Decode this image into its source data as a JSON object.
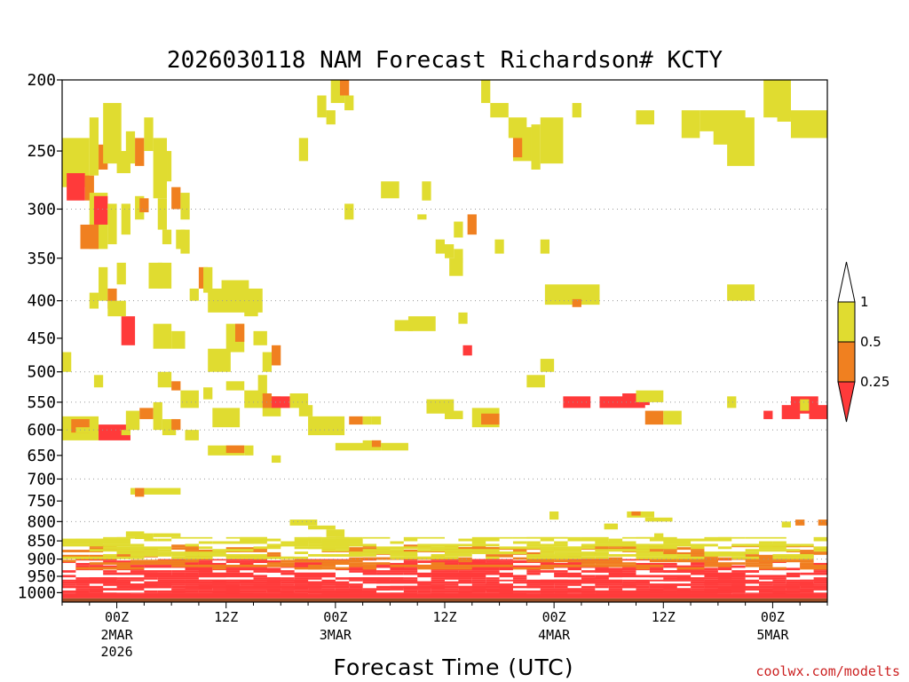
{
  "chart_data": {
    "type": "heatmap",
    "title": "2026030118 NAM Forecast Richardson# KCTY",
    "xlabel": "Forecast Time (UTC)",
    "ylabel": "",
    "credit": "coolwx.com/modelts",
    "x_ticks": [
      {
        "hour": 6,
        "label": "00Z",
        "date": "2MAR",
        "year": "2026"
      },
      {
        "hour": 18,
        "label": "12Z",
        "date": "",
        "year": ""
      },
      {
        "hour": 30,
        "label": "00Z",
        "date": "3MAR",
        "year": ""
      },
      {
        "hour": 42,
        "label": "12Z",
        "date": "",
        "year": ""
      },
      {
        "hour": 54,
        "label": "00Z",
        "date": "4MAR",
        "year": ""
      },
      {
        "hour": 66,
        "label": "12Z",
        "date": "",
        "year": ""
      },
      {
        "hour": 78,
        "label": "00Z",
        "date": "5MAR",
        "year": ""
      }
    ],
    "xlim_hours": [
      0,
      84
    ],
    "y_ticks": [
      "200",
      "250",
      "300",
      "350",
      "400",
      "450",
      "500",
      "550",
      "600",
      "650",
      "700",
      "750",
      "800",
      "850",
      "900",
      "950",
      "1000"
    ],
    "y_dotted_levels": [
      300,
      400,
      500,
      550,
      600,
      700,
      800,
      900
    ],
    "ylim_hpa": [
      1030,
      200
    ],
    "y_scale": "log-pressure",
    "colorbar": {
      "labels": [
        "1",
        "0.5",
        "0.25"
      ],
      "bands": [
        {
          "range": "0.5-1",
          "color": "#e0dc30"
        },
        {
          "range": "0.25-0.5",
          "color": "#f08020"
        },
        {
          "range": "<0.25",
          "color": "#ff3a3a"
        }
      ]
    },
    "surface_color": "#9a4e26",
    "note": "Cell ranges approximated from image: [startHour, endHour, bottomPressure, topPressure, category]. Category 0 = 0.5-1 (yellow), 1 = 0.25-0.5 (orange), 2 = <0.25 (red).",
    "cells": [
      [
        0,
        3,
        280,
        240,
        0
      ],
      [
        0.5,
        2.5,
        292,
        268,
        2
      ],
      [
        2.5,
        3.5,
        292,
        270,
        1
      ],
      [
        3,
        5,
        340,
        285,
        0
      ],
      [
        2,
        4,
        340,
        315,
        1
      ],
      [
        3.5,
        5,
        315,
        288,
        2
      ],
      [
        5,
        6,
        335,
        295,
        0
      ],
      [
        3,
        4,
        270,
        225,
        0
      ],
      [
        4,
        5,
        265,
        245,
        1
      ],
      [
        4.5,
        6.5,
        260,
        215,
        0
      ],
      [
        6,
        7.5,
        268,
        250,
        0
      ],
      [
        7,
        8,
        260,
        235,
        0
      ],
      [
        8,
        9,
        262,
        240,
        1
      ],
      [
        9,
        10,
        250,
        225,
        0
      ],
      [
        10,
        11.5,
        290,
        240,
        0
      ],
      [
        11.5,
        12,
        275,
        250,
        0
      ],
      [
        6.5,
        7.5,
        325,
        295,
        0
      ],
      [
        8,
        9,
        310,
        288,
        0
      ],
      [
        8.5,
        9.5,
        303,
        290,
        1
      ],
      [
        10.5,
        11.5,
        320,
        290,
        0
      ],
      [
        12,
        13,
        300,
        280,
        1
      ],
      [
        13,
        14,
        310,
        285,
        0
      ],
      [
        13,
        14,
        345,
        320,
        0
      ],
      [
        11,
        12,
        335,
        320,
        0
      ],
      [
        3,
        4,
        410,
        390,
        0
      ],
      [
        4,
        5,
        400,
        360,
        0
      ],
      [
        5,
        6,
        410,
        385,
        1
      ],
      [
        6,
        7,
        380,
        355,
        0
      ],
      [
        6.5,
        8,
        460,
        420,
        2
      ],
      [
        5,
        7,
        420,
        400,
        0
      ],
      [
        9.5,
        11,
        385,
        355,
        0
      ],
      [
        10,
        12,
        465,
        430,
        0
      ],
      [
        12,
        13.5,
        465,
        440,
        0
      ],
      [
        10.5,
        12,
        385,
        355,
        0
      ],
      [
        12.5,
        13.5,
        340,
        320,
        0
      ],
      [
        14,
        15,
        400,
        385,
        0
      ],
      [
        15,
        16,
        385,
        360,
        1
      ],
      [
        15.5,
        16.5,
        390,
        360,
        0
      ],
      [
        16,
        22,
        415,
        385,
        0
      ],
      [
        17.5,
        20.5,
        400,
        375,
        0
      ],
      [
        18,
        20,
        470,
        430,
        0
      ],
      [
        16,
        18.5,
        500,
        465,
        0
      ],
      [
        19,
        20,
        455,
        430,
        1
      ],
      [
        20,
        21.5,
        420,
        390,
        0
      ],
      [
        21,
        22.5,
        460,
        440,
        0
      ],
      [
        22,
        23,
        500,
        470,
        0
      ],
      [
        23,
        24,
        490,
        460,
        1
      ],
      [
        21.5,
        22.5,
        540,
        505,
        0
      ],
      [
        0,
        1,
        500,
        470,
        0
      ],
      [
        3.5,
        4.5,
        525,
        505,
        0
      ],
      [
        10.5,
        12,
        525,
        500,
        0
      ],
      [
        12,
        13,
        530,
        515,
        1
      ],
      [
        13,
        15,
        560,
        530,
        0
      ],
      [
        15.5,
        16.5,
        545,
        525,
        0
      ],
      [
        16.5,
        19.5,
        595,
        560,
        0
      ],
      [
        18,
        20,
        530,
        515,
        0
      ],
      [
        20,
        22,
        560,
        530,
        0
      ],
      [
        22,
        24,
        575,
        540,
        0
      ],
      [
        22,
        23,
        560,
        535,
        1
      ],
      [
        23,
        25,
        560,
        540,
        2
      ],
      [
        25,
        27,
        560,
        535,
        0
      ],
      [
        26,
        27.5,
        575,
        555,
        0
      ],
      [
        27,
        31,
        610,
        575,
        0
      ],
      [
        31.5,
        33,
        590,
        575,
        1
      ],
      [
        33,
        34,
        590,
        575,
        0
      ],
      [
        34,
        35,
        590,
        575,
        0
      ],
      [
        30,
        35,
        640,
        625,
        0
      ],
      [
        33,
        35,
        635,
        620,
        0
      ],
      [
        34,
        35,
        633,
        620,
        1
      ],
      [
        35,
        38,
        640,
        625,
        0
      ],
      [
        0,
        4,
        620,
        575,
        0
      ],
      [
        1,
        3,
        605,
        580,
        1
      ],
      [
        1.5,
        4,
        605,
        595,
        0
      ],
      [
        4,
        7.5,
        620,
        590,
        2
      ],
      [
        6.5,
        7.5,
        610,
        600,
        0
      ],
      [
        7,
        8.5,
        600,
        565,
        0
      ],
      [
        8.5,
        10,
        580,
        560,
        1
      ],
      [
        10,
        11,
        600,
        550,
        0
      ],
      [
        11,
        12.5,
        610,
        580,
        0
      ],
      [
        12,
        13,
        600,
        580,
        1
      ],
      [
        13.5,
        15,
        620,
        600,
        0
      ],
      [
        16,
        20,
        650,
        630,
        0
      ],
      [
        18,
        20,
        645,
        630,
        1
      ],
      [
        20,
        21,
        650,
        630,
        0
      ],
      [
        23,
        24,
        665,
        650,
        0
      ],
      [
        7.5,
        13,
        735,
        720,
        0
      ],
      [
        8,
        9,
        740,
        720,
        1
      ],
      [
        40,
        43,
        570,
        545,
        0
      ],
      [
        42,
        44,
        580,
        565,
        0
      ],
      [
        45,
        48,
        595,
        560,
        0
      ],
      [
        46,
        48,
        590,
        570,
        1
      ],
      [
        51,
        53,
        525,
        505,
        0
      ],
      [
        55,
        58,
        560,
        540,
        2
      ],
      [
        59,
        64,
        560,
        540,
        2
      ],
      [
        61.5,
        64.5,
        555,
        535,
        2
      ],
      [
        63,
        66,
        550,
        530,
        0
      ],
      [
        64,
        66,
        590,
        565,
        1
      ],
      [
        66,
        68,
        590,
        565,
        0
      ],
      [
        73,
        74,
        560,
        540,
        0
      ],
      [
        77,
        78,
        580,
        565,
        2
      ],
      [
        79,
        81,
        580,
        555,
        2
      ],
      [
        80,
        83,
        570,
        540,
        2
      ],
      [
        82,
        84,
        580,
        555,
        2
      ],
      [
        81,
        82,
        565,
        545,
        0
      ],
      [
        29.5,
        31,
        215,
        200,
        0
      ],
      [
        30.5,
        31.5,
        210,
        200,
        1
      ],
      [
        31,
        32,
        220,
        210,
        0
      ],
      [
        28,
        29,
        225,
        210,
        0
      ],
      [
        29,
        30,
        230,
        220,
        0
      ],
      [
        26,
        27,
        258,
        240,
        0
      ],
      [
        35,
        37,
        290,
        275,
        0
      ],
      [
        39.5,
        40.5,
        292,
        275,
        0
      ],
      [
        31,
        32,
        310,
        295,
        0
      ],
      [
        39,
        40,
        310,
        305,
        0
      ],
      [
        43,
        44,
        328,
        312,
        0
      ],
      [
        44.5,
        45.5,
        325,
        305,
        1
      ],
      [
        41,
        42,
        345,
        330,
        0
      ],
      [
        42,
        43,
        350,
        335,
        0
      ],
      [
        43,
        44,
        355,
        340,
        0
      ],
      [
        42.5,
        44,
        370,
        350,
        0
      ],
      [
        47.5,
        48.5,
        345,
        330,
        0
      ],
      [
        52.5,
        53.5,
        345,
        330,
        0
      ],
      [
        46,
        47,
        215,
        200,
        0
      ],
      [
        47,
        49,
        225,
        215,
        0
      ],
      [
        49,
        51,
        240,
        225,
        0
      ],
      [
        49.5,
        51.5,
        258,
        232,
        0
      ],
      [
        49.5,
        50.5,
        255,
        240,
        1
      ],
      [
        51.5,
        52.5,
        265,
        230,
        0
      ],
      [
        52.5,
        55,
        260,
        225,
        0
      ],
      [
        56,
        57,
        225,
        215,
        0
      ],
      [
        63,
        65,
        230,
        220,
        0
      ],
      [
        68,
        70,
        240,
        220,
        0
      ],
      [
        70,
        75,
        235,
        220,
        0
      ],
      [
        71.5,
        73.5,
        245,
        228,
        0
      ],
      [
        73,
        76,
        262,
        225,
        0
      ],
      [
        77,
        80,
        225,
        200,
        0
      ],
      [
        78.5,
        80,
        228,
        205,
        0
      ],
      [
        80,
        84,
        240,
        220,
        0
      ],
      [
        53,
        59,
        405,
        380,
        0
      ],
      [
        56,
        57,
        408,
        398,
        1
      ],
      [
        73,
        76,
        400,
        380,
        0
      ],
      [
        38,
        41,
        440,
        420,
        0
      ],
      [
        36.5,
        38.5,
        440,
        425,
        0
      ],
      [
        43.5,
        44.5,
        430,
        415,
        0
      ],
      [
        44,
        45,
        475,
        460,
        2
      ],
      [
        52.5,
        54,
        500,
        480,
        0
      ],
      [
        53.5,
        54.5,
        795,
        775,
        0
      ],
      [
        62,
        65,
        790,
        775,
        0
      ],
      [
        62.5,
        63.5,
        785,
        775,
        1
      ],
      [
        64,
        67,
        800,
        790,
        0
      ],
      [
        65,
        66,
        850,
        830,
        0
      ],
      [
        59.5,
        61,
        820,
        805,
        0
      ],
      [
        79,
        80,
        815,
        800,
        0
      ],
      [
        80.5,
        81.5,
        810,
        795,
        1
      ],
      [
        83,
        84,
        810,
        795,
        1
      ],
      [
        25,
        28,
        810,
        795,
        0
      ],
      [
        27,
        30,
        820,
        810,
        0
      ],
      [
        29,
        31,
        840,
        820,
        0
      ],
      [
        7,
        9,
        840,
        825,
        0
      ],
      [
        8,
        10,
        845,
        830,
        0
      ],
      [
        10,
        13,
        840,
        830,
        0
      ]
    ],
    "low_level_band": [
      {
        "from": 0,
        "to": 84,
        "bottom": 1030,
        "top": 1000,
        "category": 2
      },
      {
        "from": 0,
        "to": 84,
        "bottom": 1000,
        "top": 960,
        "category": 2,
        "density": 0.7
      },
      {
        "from": 0,
        "to": 84,
        "bottom": 960,
        "top": 900,
        "category": 2,
        "density": 0.45
      },
      {
        "from": 0,
        "to": 84,
        "bottom": 930,
        "top": 860,
        "category": 1,
        "density": 0.35
      },
      {
        "from": 0,
        "to": 84,
        "bottom": 900,
        "top": 840,
        "category": 0,
        "density": 0.4
      }
    ]
  }
}
